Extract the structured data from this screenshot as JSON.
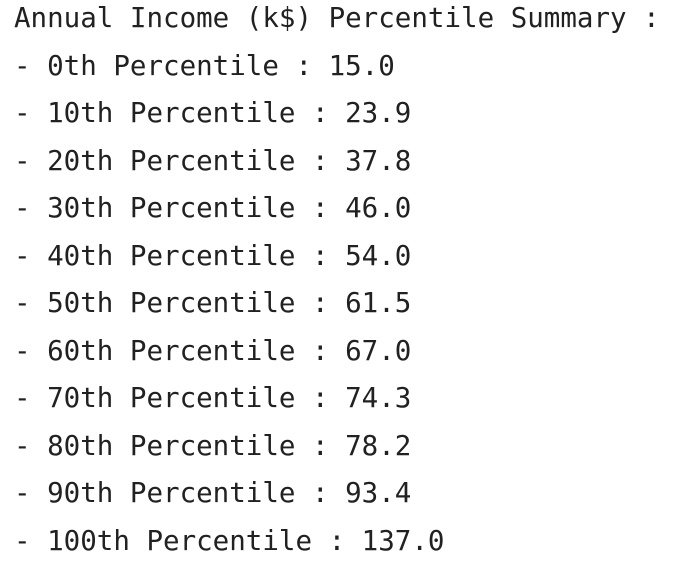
{
  "title": "Annual Income (k$) Percentile Summary :",
  "lines": [
    "- 0th Percentile : 15.0",
    "- 10th Percentile : 23.9",
    "- 20th Percentile : 37.8",
    "- 30th Percentile : 46.0",
    "- 40th Percentile : 54.0",
    "- 50th Percentile : 61.5",
    "- 60th Percentile : 67.0",
    "- 70th Percentile : 74.3",
    "- 80th Percentile : 78.2",
    "- 90th Percentile : 93.4",
    "- 100th Percentile : 137.0"
  ]
}
